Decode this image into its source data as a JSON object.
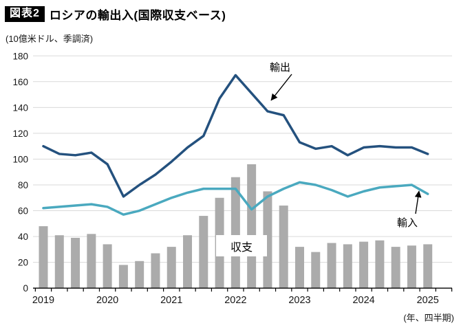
{
  "header": {
    "tag": "図表2",
    "title": "ロシアの輸出入(国際収支ベース)",
    "unit_note": "(10億米ドル、季調済)",
    "axis_note": "(年、四半期)"
  },
  "chart_data": {
    "type": "combo",
    "x_quarters": [
      "2019Q1",
      "2019Q2",
      "2019Q3",
      "2019Q4",
      "2020Q1",
      "2020Q2",
      "2020Q3",
      "2020Q4",
      "2021Q1",
      "2021Q2",
      "2021Q3",
      "2021Q4",
      "2022Q1",
      "2022Q2",
      "2022Q3",
      "2022Q4",
      "2023Q1",
      "2023Q2",
      "2023Q3",
      "2023Q4",
      "2024Q1",
      "2024Q2",
      "2024Q3",
      "2024Q4",
      "2025Q1"
    ],
    "year_labels": [
      "2019",
      "2020",
      "2021",
      "2022",
      "2023",
      "2024",
      "2025"
    ],
    "xlabel": "(年、四半期)",
    "ylabel": "(10億米ドル、季調済)",
    "ylim": [
      0,
      180
    ],
    "yticks": [
      0,
      20,
      40,
      60,
      80,
      100,
      120,
      140,
      160,
      180
    ],
    "grid": true,
    "legend_position": "inline-annotations",
    "series": [
      {
        "name": "輸出",
        "type": "line",
        "color": "#24517e",
        "values": [
          110,
          104,
          103,
          105,
          96,
          71,
          80,
          88,
          98,
          109,
          118,
          147,
          165,
          151,
          137,
          134,
          113,
          108,
          110,
          103,
          109,
          110,
          109,
          109,
          104
        ]
      },
      {
        "name": "輸入",
        "type": "line",
        "color": "#4aa9bf",
        "values": [
          62,
          63,
          64,
          65,
          63,
          57,
          60,
          65,
          70,
          74,
          77,
          77,
          77,
          61,
          71,
          77,
          82,
          80,
          76,
          71,
          75,
          78,
          79,
          80,
          73
        ]
      },
      {
        "name": "収支",
        "type": "bar",
        "color": "#ababab",
        "values": [
          48,
          41,
          39,
          42,
          34,
          18,
          21,
          27,
          32,
          41,
          56,
          70,
          86,
          96,
          75,
          64,
          32,
          28,
          35,
          34,
          36,
          37,
          32,
          33,
          34
        ]
      }
    ],
    "annotations": [
      {
        "label": "輸出",
        "points_to": "export line 2022 descent"
      },
      {
        "label": "輸入",
        "points_to": "import line 2024Q4"
      },
      {
        "label": "収支",
        "points_to": "balance bars"
      }
    ],
    "colors": {
      "gridline": "#d9d9d9",
      "axis": "#000000",
      "text": "#161616"
    }
  }
}
